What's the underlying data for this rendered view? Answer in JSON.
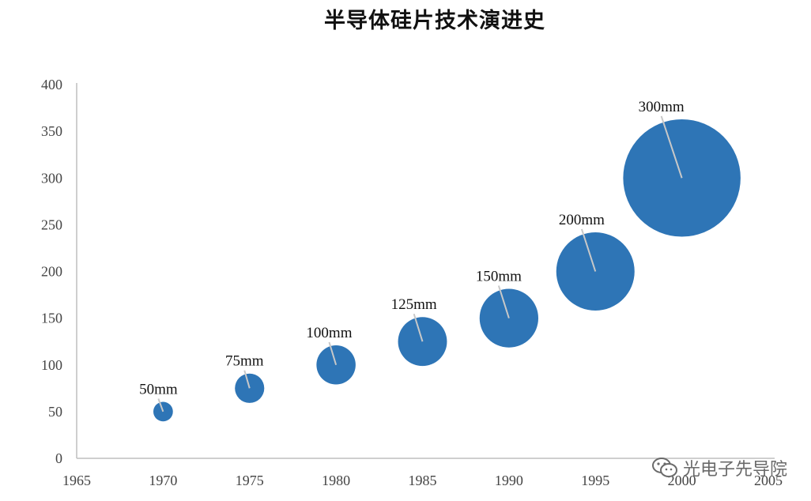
{
  "chart_data": {
    "type": "scatter",
    "title": "半导体硅片技术演进史",
    "xlabel": "",
    "ylabel": "",
    "xlim": [
      1965,
      2005
    ],
    "ylim": [
      0,
      400
    ],
    "x_ticks": [
      1965,
      1970,
      1975,
      1980,
      1985,
      1990,
      1995,
      2000,
      2005
    ],
    "y_ticks": [
      0,
      50,
      100,
      150,
      200,
      250,
      300,
      350,
      400
    ],
    "legend": "none",
    "grid": false,
    "bubble_color": "#2E75B6",
    "points": [
      {
        "x": 1970,
        "y": 50,
        "size": 50,
        "label": "50mm"
      },
      {
        "x": 1975,
        "y": 75,
        "size": 75,
        "label": "75mm"
      },
      {
        "x": 1980,
        "y": 100,
        "size": 100,
        "label": "100mm"
      },
      {
        "x": 1985,
        "y": 125,
        "size": 125,
        "label": "125mm"
      },
      {
        "x": 1990,
        "y": 150,
        "size": 150,
        "label": "150mm"
      },
      {
        "x": 1995,
        "y": 200,
        "size": 200,
        "label": "200mm"
      },
      {
        "x": 2000,
        "y": 300,
        "size": 300,
        "label": "300mm"
      }
    ]
  },
  "watermark": {
    "text": "光电子先导院",
    "icon": "wechat-icon"
  }
}
